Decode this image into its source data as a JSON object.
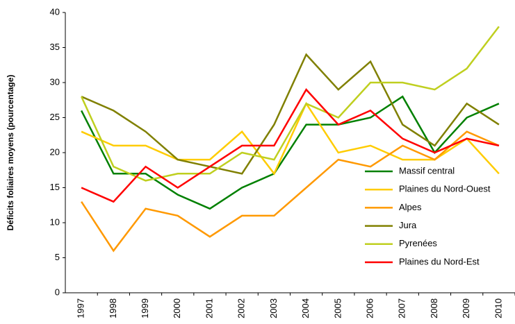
{
  "chart_data": {
    "type": "line",
    "y_label": "Déficits foliaires moyens (pourcentage)",
    "categories": [
      "1997",
      "1998",
      "1999",
      "2000",
      "2001",
      "2002",
      "2003",
      "2004",
      "2005",
      "2006",
      "2007",
      "2008",
      "2009",
      "2010"
    ],
    "series": [
      {
        "name": "Massif central",
        "color": "#008000",
        "values": [
          26,
          17,
          17,
          14,
          12,
          15,
          17,
          24,
          24,
          25,
          28,
          20,
          25,
          27
        ]
      },
      {
        "name": "Plaines du Nord-Ouest",
        "color": "#ffcc00",
        "values": [
          23,
          21,
          21,
          19,
          19,
          23,
          17,
          27,
          20,
          21,
          19,
          19,
          22,
          17
        ]
      },
      {
        "name": "Alpes",
        "color": "#ff9900",
        "values": [
          13,
          6,
          12,
          11,
          8,
          11,
          11,
          15,
          19,
          18,
          21,
          19,
          23,
          21
        ]
      },
      {
        "name": "Jura",
        "color": "#808000",
        "values": [
          28,
          26,
          23,
          19,
          18,
          17,
          24,
          34,
          29,
          33,
          24,
          21,
          27,
          24
        ]
      },
      {
        "name": "Pyrenées",
        "color": "#bfcf1f",
        "values": [
          28,
          18,
          16,
          17,
          17,
          20,
          19,
          27,
          25,
          30,
          30,
          29,
          32,
          38
        ]
      },
      {
        "name": "Plaines du Nord-Est",
        "color": "#ff0000",
        "values": [
          15,
          13,
          18,
          15,
          18,
          21,
          21,
          29,
          24,
          26,
          22,
          20,
          22,
          21
        ]
      }
    ],
    "ylim": [
      0,
      40
    ],
    "yticks": [
      0,
      5,
      10,
      15,
      20,
      25,
      30,
      35,
      40
    ],
    "grid": false
  }
}
